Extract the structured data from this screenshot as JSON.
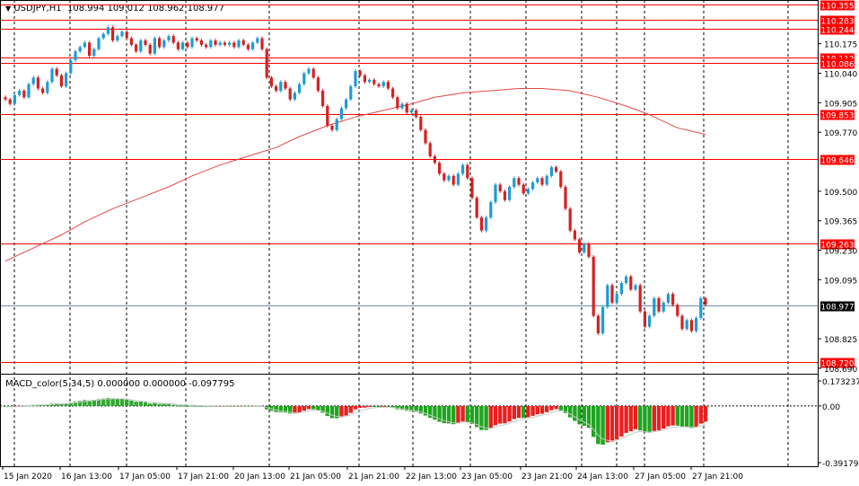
{
  "header": {
    "symbol": "USDJPY,H1",
    "ohlc": "108.994 109.012 108.962 108.977",
    "indicator": "MACD_color(5,34,5) 0.000000 0.000000 -0.097795"
  },
  "colors": {
    "bull": "#1e9bd6",
    "bear": "#d62020",
    "level_line": "#ff0000",
    "ma": "#e34747",
    "macd_pos": "#32a832",
    "macd_neg_up": "#e82020",
    "macd_neg_down": "#1ea51e",
    "signal": "#c8c8c8",
    "bid_line": "#6d8fb8",
    "grid": "#000000"
  },
  "chart_data": {
    "type": "candlestick",
    "y_range": [
      108.665,
      110.375
    ],
    "price_ticks": [
      "110.175",
      "110.040",
      "109.905",
      "109.770",
      "109.500",
      "109.365",
      "109.230",
      "109.095",
      "108.825",
      "108.690"
    ],
    "levels": [
      "110.355",
      "110.283",
      "110.244",
      "110.112",
      "110.086",
      "109.853",
      "109.646",
      "109.263",
      "108.720"
    ],
    "current_price": "108.977",
    "time_labels": [
      "15 Jan 2020",
      "16 Jan 13:00",
      "17 Jan 05:00",
      "17 Jan 21:00",
      "20 Jan 13:00",
      "21 Jan 05:00",
      "21 Jan 21:00",
      "22 Jan 13:00",
      "23 Jan 05:00",
      "23 Jan 21:00",
      "24 Jan 13:00",
      "27 Jan 05:00",
      "27 Jan 21:00"
    ],
    "closes": [
      109.92,
      109.9,
      109.94,
      109.96,
      109.93,
      109.99,
      110.02,
      109.97,
      109.95,
      110.0,
      110.06,
      110.03,
      109.98,
      110.04,
      110.1,
      110.14,
      110.16,
      110.18,
      110.12,
      110.15,
      110.2,
      110.22,
      110.25,
      110.19,
      110.21,
      110.23,
      110.2,
      110.17,
      110.14,
      110.19,
      110.17,
      110.13,
      110.2,
      110.16,
      110.19,
      110.21,
      110.18,
      110.15,
      110.18,
      110.16,
      110.2,
      110.19,
      110.17,
      110.16,
      110.19,
      110.17,
      110.18,
      110.17,
      110.18,
      110.16,
      110.19,
      110.17,
      110.15,
      110.18,
      110.2,
      110.15,
      110.02,
      109.98,
      109.96,
      110.0,
      109.97,
      109.92,
      109.95,
      109.99,
      110.04,
      110.06,
      110.02,
      109.96,
      109.89,
      109.8,
      109.78,
      109.83,
      109.88,
      109.92,
      109.98,
      110.05,
      110.03,
      110.0,
      110.01,
      109.99,
      109.98,
      110.0,
      109.97,
      109.93,
      109.88,
      109.9,
      109.86,
      109.87,
      109.84,
      109.78,
      109.72,
      109.66,
      109.63,
      109.58,
      109.55,
      109.57,
      109.53,
      109.58,
      109.62,
      109.56,
      109.47,
      109.38,
      109.32,
      109.38,
      109.45,
      109.53,
      109.5,
      109.46,
      109.52,
      109.56,
      109.53,
      109.49,
      109.51,
      109.54,
      109.56,
      109.53,
      109.57,
      109.61,
      109.59,
      109.52,
      109.42,
      109.32,
      109.28,
      109.22,
      109.26,
      109.2,
      108.93,
      108.85,
      108.97,
      109.07,
      108.99,
      109.03,
      109.08,
      109.11,
      109.05,
      109.07,
      108.95,
      108.88,
      108.93,
      109.01,
      108.95,
      108.99,
      109.03,
      108.98,
      108.93,
      108.87,
      108.91,
      108.86,
      108.92,
      109.01,
      108.98
    ],
    "ma_values": [
      109.18,
      109.24,
      109.3,
      109.36,
      109.42,
      109.47,
      109.52,
      109.57,
      109.62,
      109.66,
      109.7,
      109.75,
      109.8,
      109.84,
      109.87,
      109.9,
      109.93,
      109.95,
      109.96,
      109.97,
      109.97,
      109.96,
      109.93,
      109.89,
      109.85,
      109.79,
      109.76
    ],
    "macd_values": [
      -0.004,
      -0.006,
      -0.005,
      -0.002,
      0.001,
      0.004,
      0.008,
      0.009,
      0.008,
      0.011,
      0.016,
      0.018,
      0.015,
      0.017,
      0.023,
      0.029,
      0.035,
      0.041,
      0.038,
      0.042,
      0.047,
      0.051,
      0.055,
      0.05,
      0.05,
      0.049,
      0.044,
      0.037,
      0.03,
      0.03,
      0.026,
      0.017,
      0.02,
      0.014,
      0.014,
      0.014,
      0.008,
      0.002,
      0.003,
      -0.0,
      0.003,
      0.002,
      -0.001,
      -0.003,
      -0.0,
      -0.002,
      -0.001,
      -0.002,
      -0.001,
      -0.003,
      -0.001,
      -0.002,
      -0.004,
      -0.002,
      0.001,
      -0.004,
      -0.024,
      -0.034,
      -0.042,
      -0.043,
      -0.046,
      -0.053,
      -0.052,
      -0.045,
      -0.033,
      -0.022,
      -0.023,
      -0.032,
      -0.047,
      -0.069,
      -0.084,
      -0.085,
      -0.078,
      -0.066,
      -0.048,
      -0.023,
      -0.013,
      -0.011,
      -0.007,
      -0.007,
      -0.007,
      -0.005,
      -0.008,
      -0.014,
      -0.023,
      -0.027,
      -0.033,
      -0.036,
      -0.041,
      -0.052,
      -0.066,
      -0.082,
      -0.095,
      -0.109,
      -0.119,
      -0.121,
      -0.126,
      -0.12,
      -0.107,
      -0.11,
      -0.125,
      -0.146,
      -0.166,
      -0.166,
      -0.155,
      -0.133,
      -0.122,
      -0.12,
      -0.107,
      -0.091,
      -0.083,
      -0.083,
      -0.078,
      -0.068,
      -0.057,
      -0.054,
      -0.043,
      -0.029,
      -0.022,
      -0.03,
      -0.05,
      -0.079,
      -0.103,
      -0.127,
      -0.137,
      -0.152,
      -0.214,
      -0.263,
      -0.268,
      -0.251,
      -0.246,
      -0.232,
      -0.211,
      -0.186,
      -0.175,
      -0.161,
      -0.169,
      -0.183,
      -0.185,
      -0.173,
      -0.168,
      -0.157,
      -0.141,
      -0.135,
      -0.136,
      -0.146,
      -0.146,
      -0.153,
      -0.144,
      -0.122,
      -0.108
    ],
    "macd_range": [
      -0.391795,
      0.173237
    ],
    "macd_ticks": [
      "0.173237",
      "0.00",
      "-0.391795"
    ]
  }
}
